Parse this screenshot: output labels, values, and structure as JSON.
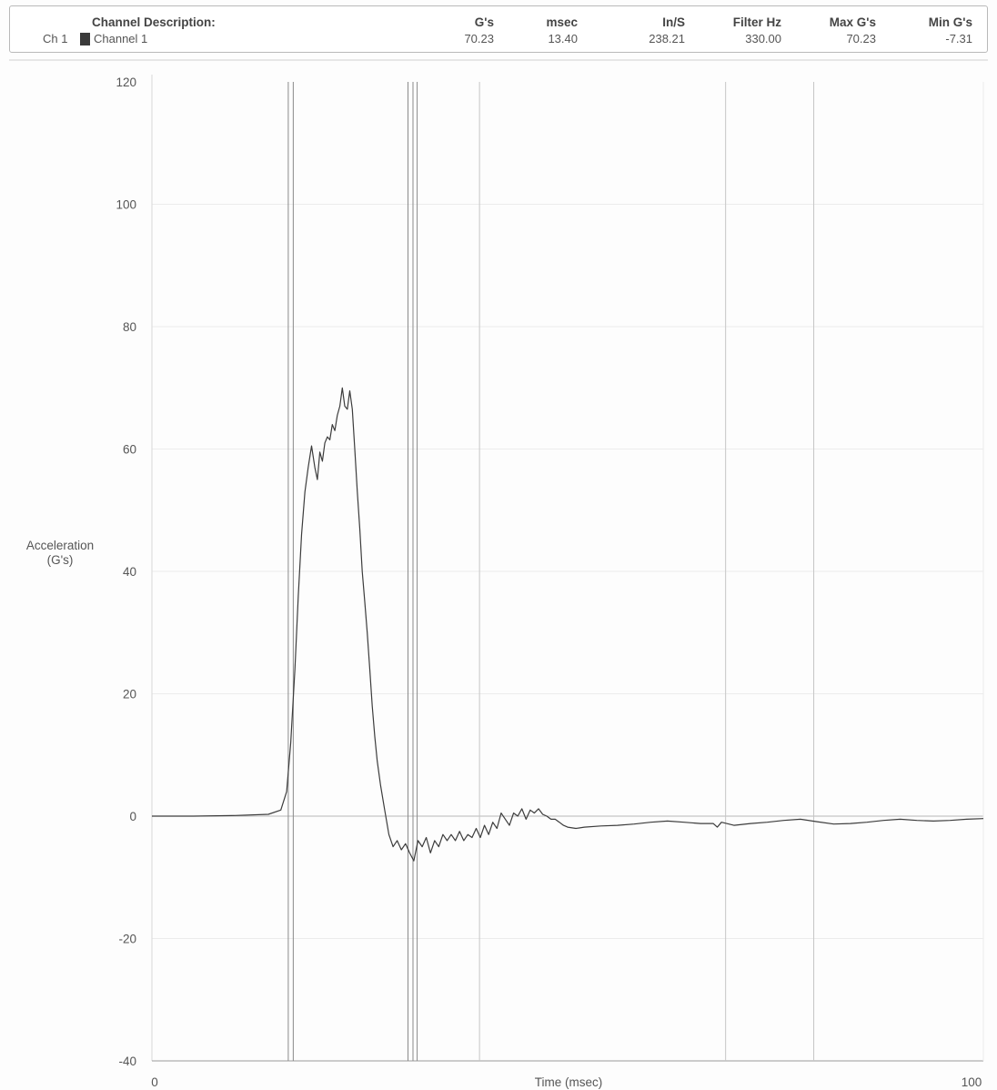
{
  "header": {
    "description_label": "Channel Description:",
    "channel_id": "Ch 1",
    "channel_name": "Channel 1",
    "columns": [
      {
        "label": "G's",
        "value": "70.23"
      },
      {
        "label": "msec",
        "value": "13.40"
      },
      {
        "label": "In/S",
        "value": "238.21"
      },
      {
        "label": "Filter Hz",
        "value": "330.00"
      },
      {
        "label": "Max G's",
        "value": "70.23"
      },
      {
        "label": "Min G's",
        "value": "-7.31"
      }
    ]
  },
  "chart_data": {
    "type": "line",
    "title": "",
    "xlabel": "Time (msec)",
    "ylabel_lines": [
      "Acceleration",
      "(G's)"
    ],
    "xlim": [
      0,
      100
    ],
    "ylim": [
      -40,
      120
    ],
    "x_tick_labels": [
      "0",
      "100"
    ],
    "y_ticks": [
      120,
      100,
      80,
      60,
      40,
      20,
      0,
      -20,
      -40
    ],
    "y_tick_labels": [
      "120",
      "100",
      "80",
      "60",
      "40",
      "20",
      "0",
      "-20",
      "-40"
    ],
    "grid": true,
    "cursor_lines_msec": [
      16.4,
      17.0,
      30.8,
      31.4,
      31.9
    ],
    "grid_lines_msec": [
      39.4,
      69.0,
      79.6
    ],
    "series": [
      {
        "color": "#3c3c3c",
        "x": [
          0,
          5,
          10,
          14,
          15.5,
          16.2,
          16.7,
          17.2,
          17.6,
          18.0,
          18.4,
          18.8,
          19.2,
          19.6,
          19.9,
          20.2,
          20.5,
          20.8,
          21.1,
          21.4,
          21.7,
          22.0,
          22.3,
          22.6,
          22.9,
          23.2,
          23.5,
          23.8,
          24.1,
          24.4,
          24.7,
          25.0,
          25.3,
          25.6,
          25.9,
          26.2,
          26.5,
          26.8,
          27.1,
          27.5,
          28.0,
          28.5,
          29.0,
          29.5,
          30.0,
          30.5,
          31.0,
          31.5,
          32.0,
          32.5,
          33.0,
          33.5,
          34.0,
          34.5,
          35.0,
          35.5,
          36.0,
          36.5,
          37.0,
          37.5,
          38.0,
          38.5,
          39.0,
          39.5,
          40.0,
          40.5,
          41.0,
          41.5,
          42.0,
          42.5,
          43.0,
          43.5,
          44.0,
          44.5,
          45.0,
          45.5,
          46.0,
          46.5,
          47.0,
          47.5,
          48.0,
          48.5,
          49.0,
          49.5,
          50.0,
          51,
          52,
          54,
          56,
          58,
          60,
          62,
          64,
          66,
          67.5,
          68,
          68.5,
          70,
          72,
          74,
          76,
          78,
          80,
          82,
          84,
          86,
          88,
          90,
          92,
          94,
          96,
          98,
          100
        ],
        "y": [
          0,
          0,
          0.1,
          0.3,
          1.0,
          4.0,
          12.0,
          24.0,
          36.0,
          46.0,
          53.0,
          57.0,
          60.5,
          57.0,
          55.0,
          59.5,
          58.0,
          61.0,
          62.0,
          61.5,
          64.0,
          63.0,
          65.5,
          67.0,
          70.0,
          67.0,
          66.5,
          69.5,
          66.5,
          60.0,
          53.0,
          47.0,
          40.0,
          35.0,
          30.0,
          24.0,
          18.0,
          13.0,
          9.0,
          5.0,
          1.0,
          -3.0,
          -5.0,
          -4.0,
          -5.5,
          -4.5,
          -6.0,
          -7.3,
          -4.0,
          -5.0,
          -3.5,
          -6.0,
          -4.0,
          -5.0,
          -3.0,
          -4.0,
          -3.0,
          -4.0,
          -2.5,
          -4.0,
          -3.0,
          -3.5,
          -2.0,
          -3.5,
          -1.5,
          -3.0,
          -1.0,
          -2.0,
          0.5,
          -0.5,
          -1.5,
          0.5,
          0.0,
          1.2,
          -0.5,
          1.0,
          0.5,
          1.2,
          0.3,
          0.0,
          -0.5,
          -0.5,
          -1.0,
          -1.5,
          -1.8,
          -2.0,
          -1.8,
          -1.6,
          -1.5,
          -1.3,
          -1.0,
          -0.8,
          -1.0,
          -1.2,
          -1.2,
          -1.8,
          -1.0,
          -1.5,
          -1.2,
          -1.0,
          -0.7,
          -0.5,
          -0.9,
          -1.3,
          -1.2,
          -1.0,
          -0.7,
          -0.5,
          -0.7,
          -0.8,
          -0.7,
          -0.5,
          -0.4
        ]
      }
    ]
  }
}
